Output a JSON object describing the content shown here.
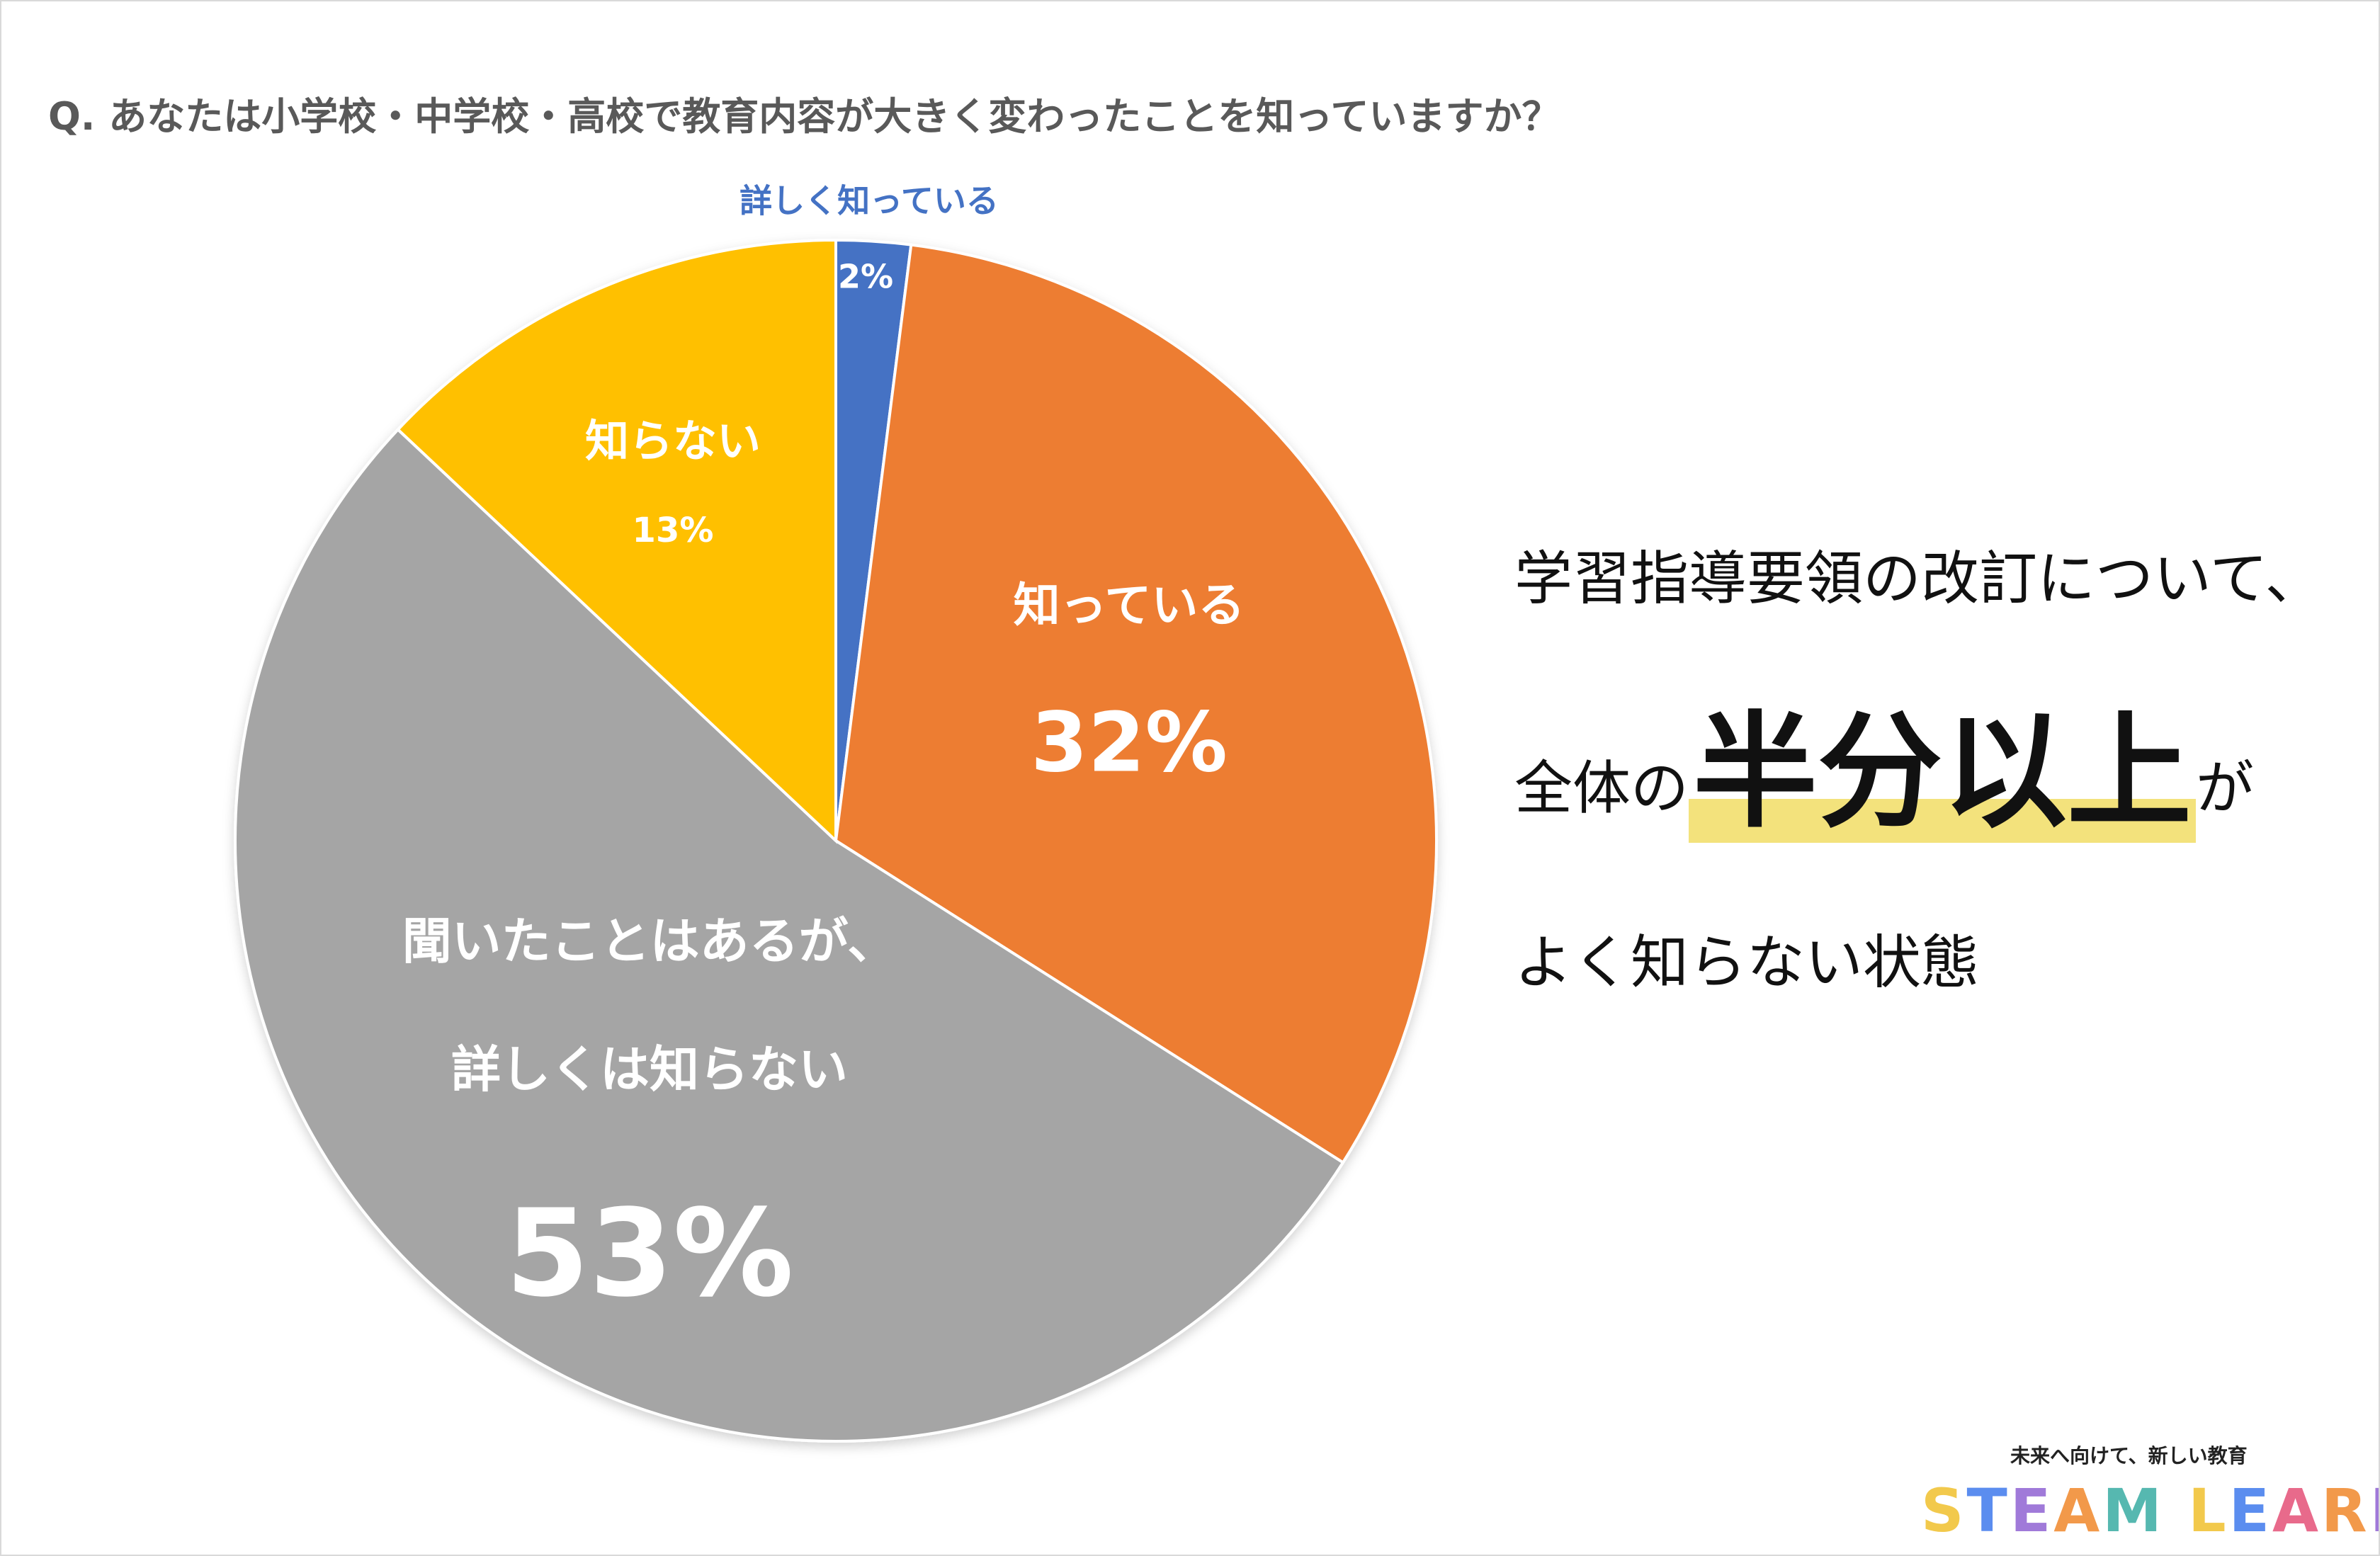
{
  "question": "Q. あなたは小学校・中学校・高校で教育内容が大きく変わったことを知っていますか？",
  "chart_data": {
    "type": "pie",
    "title": "Q. あなたは小学校・中学校・高校で教育内容が大きく変わったことを知っていますか？",
    "start": "12 o'clock",
    "direction": "clockwise",
    "slices": [
      {
        "label": "詳しく知っている",
        "value": 2,
        "display": "2%",
        "color": "#4472c4",
        "label_color": "#4472c4",
        "label_placement": "outside"
      },
      {
        "label": "知っている",
        "value": 32,
        "display": "32%",
        "color": "#ed7d31",
        "label_color": "#ffffff",
        "label_placement": "inside"
      },
      {
        "label": "聞いたことはあるが、\n詳しくは知らない",
        "value": 53,
        "display": "53%",
        "color": "#a5a5a5",
        "label_color": "#ffffff",
        "label_placement": "inside"
      },
      {
        "label": "知らない",
        "value": 13,
        "display": "13%",
        "color": "#ffc000",
        "label_color": "#ffffff",
        "label_placement": "inside"
      }
    ],
    "unit": "%"
  },
  "side_text": {
    "line1": "学習指導要領の改訂について、",
    "line2_before": "全体の",
    "line2_highlight": "半分以上",
    "line2_after": "が",
    "line3": "よく知らない状態",
    "highlight_color": "#f3e27c"
  },
  "brand": {
    "tagline": "未来へ向けて、新しい教育",
    "letters": [
      "S",
      "T",
      "E",
      "A",
      "M",
      " ",
      "L",
      "E",
      "A",
      "R",
      "N"
    ],
    "letter_colors": [
      "#f2c94c",
      "#5b8def",
      "#a07ad9",
      "#f2994a",
      "#56b8b0",
      "#ffffff",
      "#f2c94c",
      "#5b8def",
      "#e86a8b",
      "#f2994a",
      "#a07ad9"
    ]
  }
}
